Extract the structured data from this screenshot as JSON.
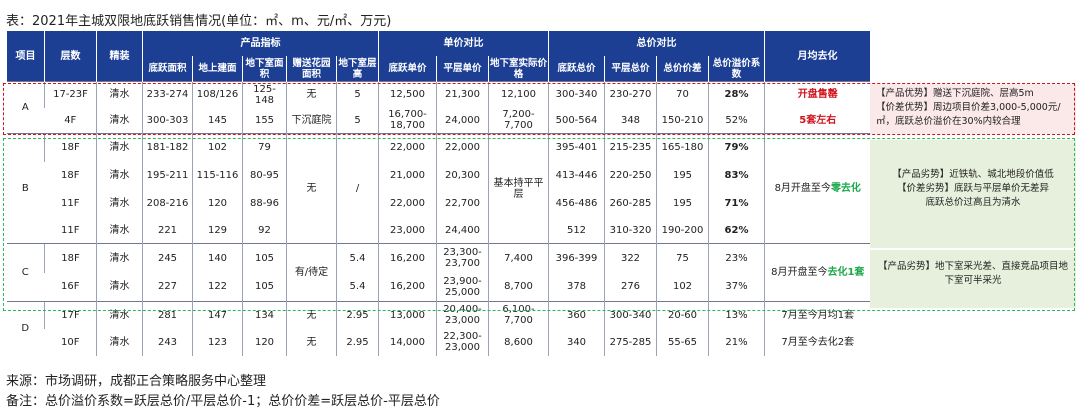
{
  "title": "表：2021年主城双限地底跃销售情况(单位：㎡、m、元/㎡、万元)",
  "headers": {
    "project": "项目",
    "floors": "层数",
    "finish": "精装",
    "product": "产品指标",
    "unit_price": "单价对比",
    "total_price": "总价对比",
    "monthly": "月均去化",
    "sub": [
      "底跃面积",
      "地上建面",
      "地下室面积",
      "赠送花园面积",
      "地下室层高",
      "底跃单价",
      "平层单价",
      "地下室实际价格",
      "底跃总价",
      "平层总价",
      "总价价差",
      "总价溢价系数"
    ]
  },
  "groups": [
    {
      "project": "A",
      "rows": [
        {
          "floors": "17-23F",
          "finish": "清水",
          "diyue_area": "233-274",
          "above": "108/126",
          "base_area": "125-148",
          "garden": "无",
          "base_h": "5",
          "diyue_price": "12,500",
          "flat_price": "21,300",
          "base_price": "12,100",
          "diyue_total": "300-340",
          "flat_total": "230-270",
          "diff": "70",
          "coef": "28%"
        },
        {
          "floors": "4F",
          "finish": "清水",
          "diyue_area": "300-303",
          "above": "145",
          "base_area": "155",
          "garden": "下沉庭院",
          "base_h": "5",
          "diyue_price": "16,700-18,700",
          "flat_price": "24,000",
          "base_price": "7,200-7,700",
          "diyue_total": "500-564",
          "flat_total": "348",
          "diff": "150-210",
          "coef": "52%"
        }
      ],
      "monthly": [
        "开盘售罄",
        "5套左右"
      ],
      "note": [
        "【产品优势】赠送下沉庭院、层高5m",
        "【价差优势】周边项目价差3,000-5,000元/㎡，底跃总价溢价在30%内较合理"
      ]
    },
    {
      "project": "B",
      "rows": [
        {
          "floors": "18F",
          "finish": "清水",
          "diyue_area": "181-182",
          "above": "102",
          "base_area": "79",
          "diyue_price": "22,000",
          "flat_price": "22,000",
          "diyue_total": "395-401",
          "flat_total": "215-235",
          "diff": "165-180",
          "coef": "79%"
        },
        {
          "floors": "18F",
          "finish": "清水",
          "diyue_area": "195-211",
          "above": "115-116",
          "base_area": "80-95",
          "diyue_price": "21,000",
          "flat_price": "20,300",
          "diyue_total": "413-446",
          "flat_total": "220-250",
          "diff": "195",
          "coef": "83%"
        },
        {
          "floors": "11F",
          "finish": "清水",
          "diyue_area": "208-216",
          "above": "120",
          "base_area": "88-96",
          "diyue_price": "22,000",
          "flat_price": "22,700",
          "diyue_total": "456-486",
          "flat_total": "260-285",
          "diff": "195",
          "coef": "71%"
        },
        {
          "floors": "11F",
          "finish": "清水",
          "diyue_area": "221",
          "above": "129",
          "base_area": "92",
          "diyue_price": "23,000",
          "flat_price": "24,400",
          "diyue_total": "512",
          "flat_total": "310-320",
          "diff": "190-200",
          "coef": "62%"
        }
      ],
      "garden": "无",
      "base_h": "/",
      "base_price": "基本持平平层",
      "monthly_pre": "8月开盘至今",
      "monthly_hl": "零去化",
      "note": [
        "【产品劣势】近铁轨、城北地段价值低",
        "【价差劣势】底跃与平层单价无差异",
        "底跃总价过高且为清水"
      ]
    },
    {
      "project": "C",
      "rows": [
        {
          "floors": "18F",
          "finish": "清水",
          "diyue_area": "245",
          "above": "140",
          "base_area": "105",
          "base_h": "5.4",
          "diyue_price": "16,200",
          "flat_price": "23,300-23,700",
          "base_price": "7,400",
          "diyue_total": "396-399",
          "flat_total": "322",
          "diff": "75",
          "coef": "23%"
        },
        {
          "floors": "16F",
          "finish": "清水",
          "diyue_area": "227",
          "above": "122",
          "base_area": "105",
          "base_h": "5.4",
          "diyue_price": "16,200",
          "flat_price": "23,900-25,000",
          "base_price": "8,700",
          "diyue_total": "378",
          "flat_total": "276",
          "diff": "102",
          "coef": "37%"
        }
      ],
      "garden": "有/待定",
      "monthly_pre": "8月开盘至今",
      "monthly_hl": "去化1套",
      "note": [
        "【产品劣势】地下室采光差、直接竞品项目地下室可半采光"
      ]
    },
    {
      "project": "D",
      "rows": [
        {
          "floors": "17F",
          "finish": "清水",
          "diyue_area": "281",
          "above": "147",
          "base_area": "134",
          "garden": "无",
          "base_h": "2.95",
          "diyue_price": "13,000",
          "flat_price": "20,400-23,000",
          "base_price": "6,100-7,700",
          "diyue_total": "360",
          "flat_total": "300-340",
          "diff": "20-60",
          "coef": "13%",
          "monthly": "7月至今月均1套"
        },
        {
          "floors": "10F",
          "finish": "清水",
          "diyue_area": "243",
          "above": "123",
          "base_area": "120",
          "garden": "无",
          "base_h": "2.95",
          "diyue_price": "14,000",
          "flat_price": "22,300-23,000",
          "base_price": "8,600",
          "diyue_total": "340",
          "flat_total": "275-285",
          "diff": "55-65",
          "coef": "21%",
          "monthly": "7月至今去化2套"
        }
      ]
    }
  ],
  "footer": {
    "source": "来源：市场调研，成都正合策略服务中心整理",
    "remark": "备注：总价溢价系数=跃层总价/平层总价-1；总价价差=跃层总价-平层总价"
  }
}
